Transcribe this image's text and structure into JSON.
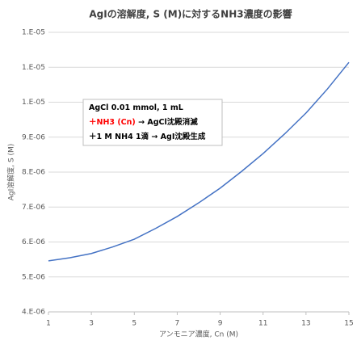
{
  "chart_data": {
    "type": "line",
    "title": "AgIの溶解度, S (M)に対するNH3濃度の影響",
    "x_label": "アンモニア濃度, Cn (M)",
    "y_label": "AgI溶解度, S (M)",
    "x": [
      1,
      2,
      3,
      4,
      5,
      6,
      7,
      8,
      9,
      10,
      11,
      12,
      13,
      14,
      15
    ],
    "series": [
      {
        "name": "S",
        "color": "#4472c4",
        "values": [
          5.46e-06,
          5.55e-06,
          5.67e-06,
          5.86e-06,
          6.08e-06,
          6.39e-06,
          6.73e-06,
          7.12e-06,
          7.54e-06,
          8.02e-06,
          8.53e-06,
          9.09e-06,
          9.69e-06,
          1.038e-05,
          1.114e-05
        ]
      }
    ],
    "xlim": [
      1,
      15
    ],
    "xticks": [
      1,
      3,
      5,
      7,
      9,
      11,
      13,
      15
    ],
    "ylim": [
      4e-06,
      1.2e-05
    ],
    "yticks": [
      {
        "value": 4e-06,
        "label": "4.E-06"
      },
      {
        "value": 5e-06,
        "label": "5.E-06"
      },
      {
        "value": 6e-06,
        "label": "6.E-06"
      },
      {
        "value": 7e-06,
        "label": "7.E-06"
      },
      {
        "value": 8e-06,
        "label": "8.E-06"
      },
      {
        "value": 9e-06,
        "label": "9.E-06"
      },
      {
        "value": 1e-05,
        "label": "1.E-05"
      },
      {
        "value": 1.1e-05,
        "label": "1.E-05"
      },
      {
        "value": 1.2e-05,
        "label": "1.E-05"
      }
    ],
    "grid": true,
    "annotation": [
      {
        "parts": [
          {
            "text": "AgCl 0.01 mmol, 1 mL",
            "color": "#000000"
          }
        ]
      },
      {
        "parts": [
          {
            "text": "＋",
            "color": "#ff0000"
          },
          {
            "text": "NH3 (Cn)",
            "color": "#ff0000"
          },
          {
            "text": " → AgCl沈殿消滅",
            "color": "#000000"
          }
        ]
      },
      {
        "parts": [
          {
            "text": "＋1 M NH4  1滴 → AgI沈殿生成",
            "color": "#000000"
          }
        ]
      }
    ]
  }
}
